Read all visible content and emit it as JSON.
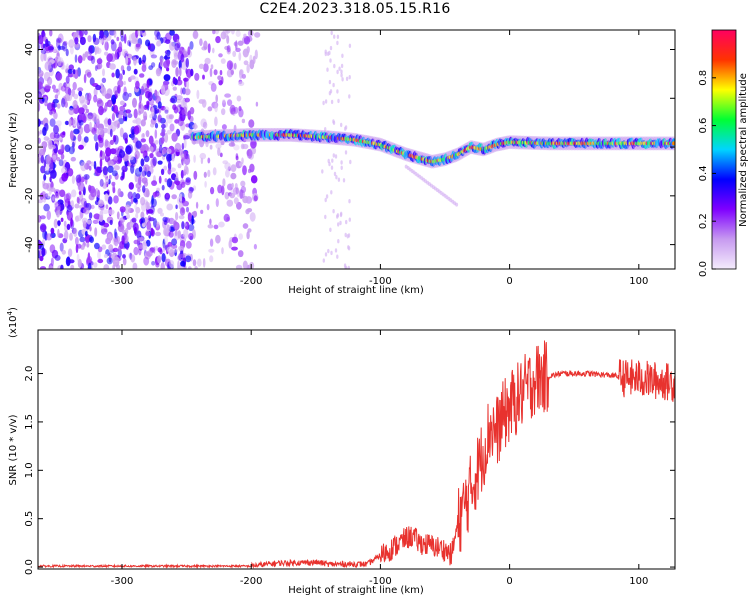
{
  "title": "C2E4.2023.318.05.15.R16",
  "chart_data": [
    {
      "type": "heatmap",
      "xlabel": "Height of straight line (km)",
      "ylabel": "Frequency (Hz)",
      "xlim": [
        -365,
        128
      ],
      "ylim": [
        -50,
        48
      ],
      "x_ticks": [
        -300,
        -200,
        -100,
        0,
        100
      ],
      "y_ticks": [
        -40,
        -20,
        0,
        20,
        40
      ],
      "colorbar": {
        "label": "Normalized spectral amplitude",
        "range": [
          0.0,
          1.0
        ],
        "ticks": [
          "0.0",
          "0.2",
          "0.4",
          "0.6",
          "0.8"
        ],
        "colors": [
          "#f4ecfc",
          "#c79af0",
          "#7f00ff",
          "#0000ff",
          "#00d5ff",
          "#00ff33",
          "#ffff00",
          "#ff3300",
          "#ff0060"
        ]
      },
      "ridge": {
        "x": [
          -245,
          -200,
          -170,
          -140,
          -120,
          -100,
          -80,
          -60,
          -50,
          -40,
          -30,
          -20,
          -10,
          0,
          30,
          60,
          90,
          128
        ],
        "y": [
          4,
          5,
          5,
          4,
          3,
          1,
          -3,
          -6,
          -5,
          -3,
          0,
          -1,
          1,
          2,
          1.5,
          1.5,
          1.5,
          1.5
        ]
      },
      "noise_band_x": [
        -365,
        -195
      ]
    },
    {
      "type": "line",
      "xlabel": "Height of straight line (km)",
      "ylabel": "SNR (10 * v/v)",
      "y_multiplier": "(x10",
      "y_multiplier_exp": "4",
      "y_multiplier_close": ")",
      "xlim": [
        -365,
        128
      ],
      "ylim": [
        -0.02,
        2.45
      ],
      "x_ticks": [
        -300,
        -200,
        -100,
        0,
        100
      ],
      "y_ticks": [
        "0.0",
        "0.5",
        "1.0",
        "1.5",
        "2.0"
      ],
      "series": [
        {
          "color": "#e8322e",
          "x": [
            -365,
            -200,
            -180,
            -150,
            -140,
            -110,
            -100,
            -90,
            -80,
            -75,
            -70,
            -60,
            -50,
            -45,
            -40,
            -30,
            -25,
            -20,
            -15,
            -10,
            -5,
            0,
            10,
            20,
            30,
            40,
            60,
            80,
            90,
            100,
            110,
            120,
            128
          ],
          "y": [
            0.01,
            0.01,
            0.04,
            0.05,
            0.03,
            0.03,
            0.12,
            0.2,
            0.3,
            0.32,
            0.25,
            0.22,
            0.18,
            0.12,
            0.45,
            0.8,
            1.0,
            1.2,
            1.45,
            1.4,
            1.55,
            1.65,
            1.8,
            1.95,
            1.97,
            2.0,
            2.0,
            1.98,
            1.95,
            1.95,
            1.93,
            1.92,
            1.9
          ]
        }
      ]
    }
  ]
}
